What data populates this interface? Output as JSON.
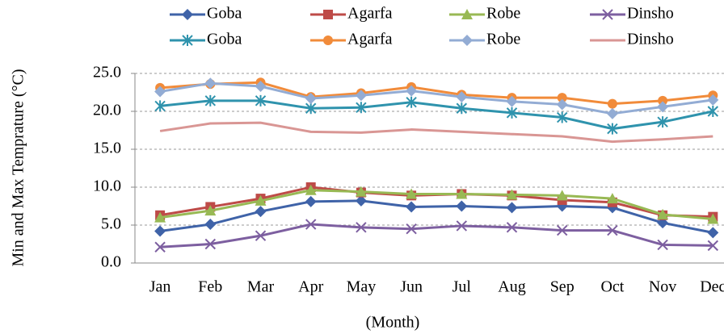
{
  "chart_data": {
    "type": "line",
    "categories": [
      "Jan",
      "Feb",
      "Mar",
      "Apr",
      "May",
      "Jun",
      "Jul",
      "Aug",
      "Sep",
      "Oct",
      "Nov",
      "Dec"
    ],
    "series": [
      {
        "name": "Goba",
        "color": "#3f63a8",
        "marker": "diamond",
        "values": [
          4.2,
          5.1,
          6.8,
          8.1,
          8.2,
          7.4,
          7.5,
          7.3,
          7.5,
          7.3,
          5.3,
          4.0
        ]
      },
      {
        "name": "Agarfa",
        "color": "#be4b48",
        "marker": "square",
        "values": [
          6.3,
          7.4,
          8.5,
          10.0,
          9.3,
          8.9,
          9.1,
          8.9,
          8.3,
          8.0,
          6.3,
          6.1
        ]
      },
      {
        "name": "Robe",
        "color": "#98b954",
        "marker": "triangle",
        "values": [
          6.0,
          6.9,
          8.2,
          9.6,
          9.4,
          9.1,
          9.1,
          9.0,
          8.9,
          8.5,
          6.4,
          5.8
        ]
      },
      {
        "name": "Dinsho",
        "color": "#7d5fa0",
        "marker": "x",
        "values": [
          2.1,
          2.5,
          3.6,
          5.1,
          4.7,
          4.5,
          4.9,
          4.7,
          4.3,
          4.3,
          2.4,
          2.3
        ]
      },
      {
        "name": "Goba",
        "color": "#2f93ad",
        "marker": "star",
        "values": [
          20.7,
          21.4,
          21.4,
          20.4,
          20.5,
          21.2,
          20.4,
          19.8,
          19.2,
          17.7,
          18.6,
          20.0
        ]
      },
      {
        "name": "Agarfa",
        "color": "#f18b3a",
        "marker": "circle",
        "values": [
          23.1,
          23.6,
          23.8,
          21.9,
          22.4,
          23.2,
          22.2,
          21.8,
          21.8,
          21.0,
          21.4,
          22.1
        ]
      },
      {
        "name": "Robe",
        "color": "#93acd4",
        "marker": "diamond",
        "values": [
          22.6,
          23.7,
          23.3,
          21.7,
          22.1,
          22.7,
          21.9,
          21.3,
          20.9,
          19.7,
          20.6,
          21.5
        ]
      },
      {
        "name": "Dinsho",
        "color": "#d99694",
        "marker": "none",
        "values": [
          17.4,
          18.4,
          18.5,
          17.3,
          17.2,
          17.6,
          17.3,
          17.0,
          16.7,
          16.0,
          16.3,
          16.7
        ]
      }
    ],
    "x_label": "(Month)",
    "y_label": "Min and Max Temprature (°C)",
    "ylim": [
      0,
      25
    ],
    "yticks": [
      {
        "value": 0,
        "label": "0.0"
      },
      {
        "value": 5,
        "label": "5.0"
      },
      {
        "value": 10,
        "label": "10.0"
      },
      {
        "value": 15,
        "label": "15.0"
      },
      {
        "value": 20,
        "label": "20.0"
      },
      {
        "value": 25,
        "label": "25.0"
      }
    ],
    "grid": true,
    "legend": "top"
  }
}
